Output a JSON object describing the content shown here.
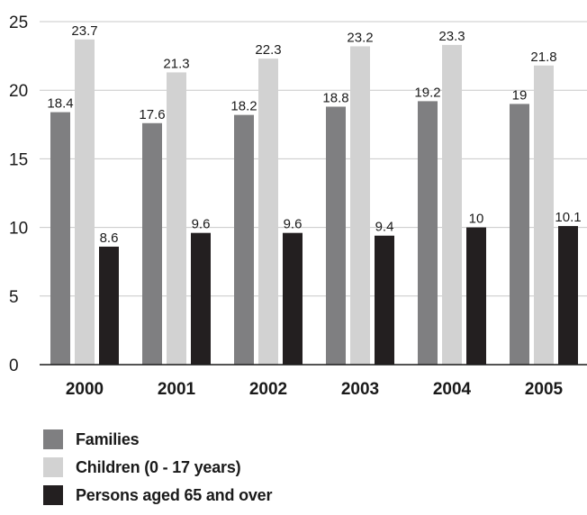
{
  "chart_data": {
    "type": "bar",
    "title": "",
    "xlabel": "",
    "ylabel": "",
    "categories": [
      "2000",
      "2001",
      "2002",
      "2003",
      "2004",
      "2005"
    ],
    "ylim": [
      0,
      25
    ],
    "yticks": [
      0,
      5,
      10,
      15,
      20,
      25
    ],
    "grid": true,
    "legend_position": "bottom-left",
    "series": [
      {
        "name": "Families",
        "color": "#7f7f81",
        "values": [
          18.4,
          17.6,
          18.2,
          18.8,
          19.2,
          19
        ],
        "labels": [
          "18.4",
          "17.6",
          "18.2",
          "18.8",
          "19.2",
          "19"
        ]
      },
      {
        "name": "Children (0 - 17 years)",
        "color": "#d2d2d2",
        "values": [
          23.7,
          21.3,
          22.3,
          23.2,
          23.3,
          21.8
        ],
        "labels": [
          "23.7",
          "21.3",
          "22.3",
          "23.2",
          "23.3",
          "21.8"
        ]
      },
      {
        "name": "Persons aged 65 and over",
        "color": "#231f20",
        "values": [
          8.6,
          9.6,
          9.6,
          9.4,
          10,
          10.1
        ],
        "labels": [
          "8.6",
          "9.6",
          "9.6",
          "9.4",
          "10",
          "10.1"
        ]
      }
    ]
  }
}
